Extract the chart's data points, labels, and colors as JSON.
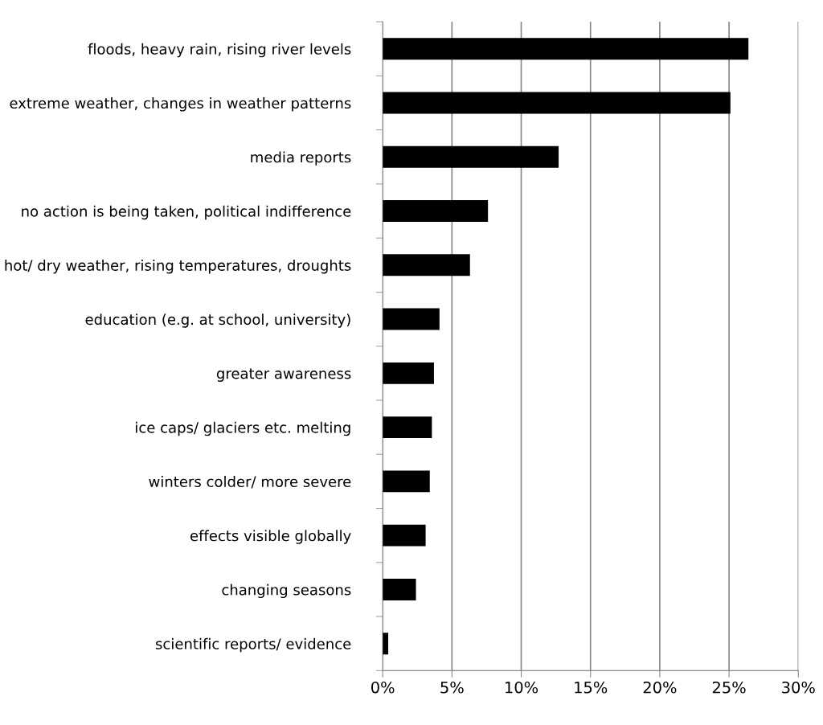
{
  "chart_data": {
    "type": "bar",
    "orientation": "horizontal",
    "categories": [
      "floods, heavy rain, rising river levels",
      "extreme weather, changes in weather patterns",
      "media reports",
      "no action is being taken, political indifference",
      "hot/ dry weather, rising temperatures, droughts",
      "education (e.g. at school, university)",
      "greater awareness",
      "ice caps/ glaciers etc. melting",
      "winters colder/ more severe",
      "effects visible globally",
      "changing seasons",
      "scientific reports/ evidence"
    ],
    "values": [
      26.4,
      25.1,
      12.7,
      7.6,
      6.3,
      4.1,
      3.7,
      3.55,
      3.4,
      3.1,
      2.4,
      0.4
    ],
    "color": "#000000",
    "xlim": [
      0,
      30
    ],
    "xticks": [
      {
        "value": 0,
        "label": "0%"
      },
      {
        "value": 5,
        "label": "5%"
      },
      {
        "value": 10,
        "label": "10%"
      },
      {
        "value": 15,
        "label": "15%"
      },
      {
        "value": 20,
        "label": "20%"
      },
      {
        "value": 25,
        "label": "25%"
      },
      {
        "value": 30,
        "label": "30%"
      }
    ],
    "grid": "x"
  }
}
